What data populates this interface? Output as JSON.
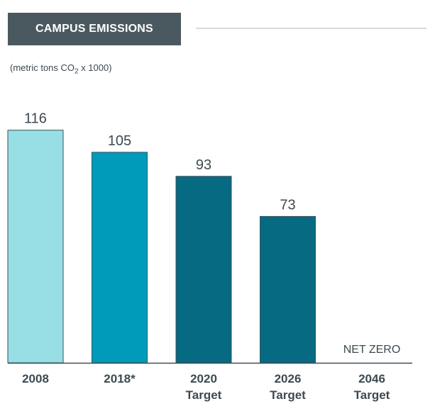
{
  "header": {
    "title": "CAMPUS EMISSIONS",
    "subtitle_prefix": "(metric tons CO",
    "subtitle_sub": "2",
    "subtitle_suffix": " x 1000)"
  },
  "chart_data": {
    "type": "bar",
    "title": "CAMPUS EMISSIONS",
    "ylabel": "metric tons CO2 x 1000",
    "xlabel": "",
    "categories": [
      "2008",
      "2018*",
      "2020 Target",
      "2026 Target",
      "2046 Target"
    ],
    "category_lines": [
      [
        "2008"
      ],
      [
        "2018*"
      ],
      [
        "2020",
        "Target"
      ],
      [
        "2026",
        "Target"
      ],
      [
        "2046",
        "Target"
      ]
    ],
    "values": [
      116,
      105,
      93,
      73,
      0
    ],
    "data_labels": [
      "116",
      "105",
      "93",
      "73",
      "NET ZERO"
    ],
    "colors": [
      "#97dfe5",
      "#009abb",
      "#066a82",
      "#066a82",
      "#066a82"
    ],
    "ylim": [
      0,
      120
    ],
    "grid": false,
    "legend": "none"
  }
}
